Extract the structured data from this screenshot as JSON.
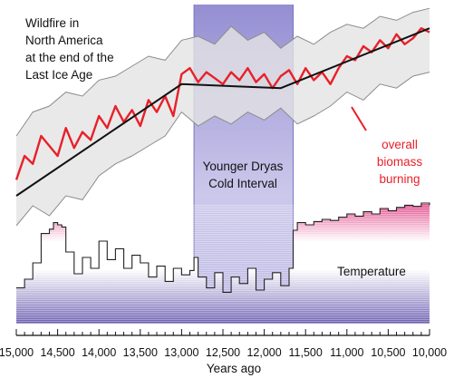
{
  "chart_data": {
    "type": "line",
    "title": "Wildfire in North America at the end of the Last Ice Age",
    "title_lines": [
      "Wildfire in",
      "North America",
      "at the end of the",
      "Last Ice Age"
    ],
    "xlabel": "Years ago",
    "x_reversed": true,
    "xlim": [
      15000,
      10000
    ],
    "x_ticks": [
      15000,
      14500,
      14000,
      13500,
      13000,
      12500,
      12000,
      11500,
      11000,
      10500,
      10000
    ],
    "x_tick_labels": [
      "15,000",
      "14,500",
      "14,000",
      "13,500",
      "13,000",
      "12,500",
      "12,000",
      "11,500",
      "11,000",
      "10,500",
      "10,000"
    ],
    "annotations": {
      "younger_dryas": {
        "label_lines": [
          "Younger Dryas",
          "Cold Interval"
        ],
        "x_start": 12850,
        "x_end": 11650
      },
      "biomass_label_lines": [
        "overall",
        "biomass",
        "burning"
      ],
      "temperature_label": "Temperature"
    },
    "colors": {
      "biomass": "#e8202a",
      "trend": "#111111",
      "band_fill": "#e4e4e4",
      "band_edge": "#8c8c8c",
      "younger_dryas_fill": "#9e98d6",
      "temperature_line": "#222222",
      "temp_warm": "#e0488a",
      "temp_cold": "#6a5db0"
    },
    "series": [
      {
        "name": "overall biomass burning",
        "y_relative_range": [
          0,
          100
        ],
        "x": [
          15000,
          14900,
          14800,
          14700,
          14600,
          14500,
          14400,
          14300,
          14200,
          14100,
          14000,
          13900,
          13800,
          13700,
          13600,
          13500,
          13400,
          13300,
          13200,
          13100,
          13000,
          12900,
          12800,
          12700,
          12600,
          12500,
          12400,
          12300,
          12200,
          12100,
          12000,
          11900,
          11800,
          11700,
          11600,
          11500,
          11400,
          11300,
          11200,
          11100,
          11000,
          10900,
          10800,
          10700,
          10600,
          10500,
          10400,
          10300,
          10200,
          10100,
          10000
        ],
        "y": [
          18,
          30,
          26,
          40,
          35,
          30,
          44,
          34,
          42,
          38,
          50,
          44,
          55,
          47,
          53,
          45,
          58,
          52,
          60,
          50,
          71,
          74,
          67,
          72,
          69,
          66,
          72,
          68,
          74,
          67,
          71,
          64,
          70,
          73,
          66,
          74,
          68,
          72,
          66,
          74,
          80,
          78,
          85,
          82,
          88,
          84,
          91,
          86,
          89,
          94,
          92
        ]
      },
      {
        "name": "uncertainty upper",
        "x": [
          15000,
          14800,
          14600,
          14400,
          14200,
          14000,
          13800,
          13600,
          13400,
          13200,
          13000,
          12800,
          12600,
          12400,
          12200,
          12000,
          11800,
          11600,
          11400,
          11200,
          11000,
          10800,
          10600,
          10400,
          10200,
          10000
        ],
        "y": [
          40,
          52,
          55,
          62,
          60,
          68,
          70,
          75,
          80,
          78,
          88,
          90,
          86,
          95,
          88,
          92,
          84,
          90,
          86,
          92,
          96,
          94,
          100,
          98,
          102,
          104
        ]
      },
      {
        "name": "uncertainty lower",
        "x": [
          15000,
          14800,
          14600,
          14400,
          14200,
          14000,
          13800,
          13600,
          13400,
          13200,
          13000,
          12800,
          12600,
          12400,
          12200,
          12000,
          11800,
          11600,
          11400,
          11200,
          11000,
          10800,
          10600,
          10400,
          10200,
          10000
        ],
        "y": [
          -5,
          5,
          0,
          10,
          8,
          20,
          26,
          30,
          35,
          40,
          52,
          45,
          50,
          46,
          52,
          48,
          54,
          46,
          50,
          55,
          62,
          58,
          66,
          64,
          70,
          72
        ]
      },
      {
        "name": "trend",
        "x": [
          15000,
          13000,
          11800,
          10000
        ],
        "y": [
          10,
          66,
          64,
          94
        ]
      },
      {
        "name": "Temperature",
        "y_relative_range": [
          0,
          100
        ],
        "x": [
          15000,
          14900,
          14800,
          14700,
          14600,
          14550,
          14500,
          14450,
          14400,
          14300,
          14200,
          14100,
          14000,
          13900,
          13800,
          13700,
          13600,
          13500,
          13400,
          13300,
          13200,
          13100,
          13000,
          12900,
          12850,
          12800,
          12700,
          12600,
          12500,
          12400,
          12300,
          12200,
          12100,
          12000,
          11900,
          11800,
          11700,
          11650,
          11600,
          11500,
          11400,
          11300,
          11200,
          11100,
          11000,
          10900,
          10800,
          10700,
          10600,
          10500,
          10400,
          10300,
          10200,
          10100,
          10000
        ],
        "y": [
          12,
          20,
          35,
          62,
          66,
          72,
          70,
          68,
          45,
          25,
          40,
          30,
          55,
          38,
          48,
          30,
          42,
          35,
          22,
          32,
          18,
          30,
          24,
          28,
          40,
          22,
          12,
          26,
          8,
          22,
          16,
          30,
          10,
          20,
          26,
          14,
          30,
          65,
          72,
          70,
          73,
          75,
          74,
          77,
          80,
          78,
          82,
          80,
          85,
          83,
          86,
          88,
          87,
          90,
          88
        ]
      }
    ]
  }
}
